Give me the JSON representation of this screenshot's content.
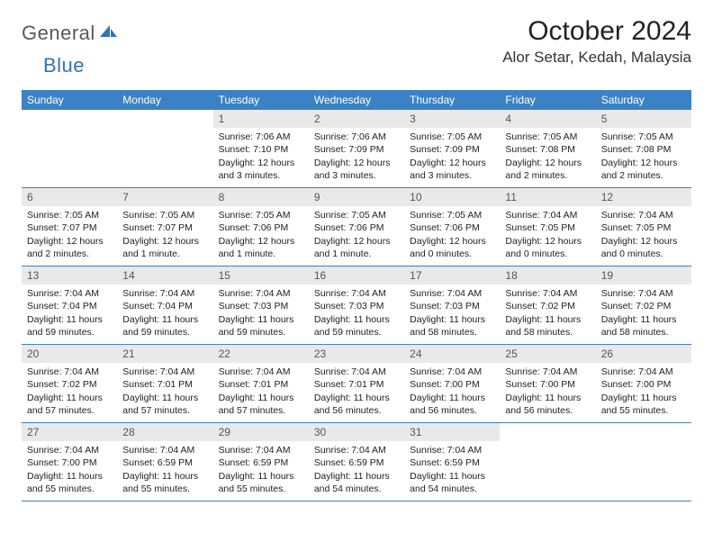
{
  "logo": {
    "part1": "General",
    "part2": "Blue"
  },
  "title": "October 2024",
  "location": "Alor Setar, Kedah, Malaysia",
  "colors": {
    "header_bg": "#3b82c4",
    "header_text": "#ffffff",
    "daynum_bg": "#e9e9e9",
    "border": "#3b82c4",
    "logo_gray": "#555a5e",
    "logo_blue": "#2f75b5"
  },
  "weekdays": [
    "Sunday",
    "Monday",
    "Tuesday",
    "Wednesday",
    "Thursday",
    "Friday",
    "Saturday"
  ],
  "first_weekday_index": 2,
  "days": [
    {
      "n": 1,
      "sunrise": "7:06 AM",
      "sunset": "7:10 PM",
      "daylight": "12 hours and 3 minutes."
    },
    {
      "n": 2,
      "sunrise": "7:06 AM",
      "sunset": "7:09 PM",
      "daylight": "12 hours and 3 minutes."
    },
    {
      "n": 3,
      "sunrise": "7:05 AM",
      "sunset": "7:09 PM",
      "daylight": "12 hours and 3 minutes."
    },
    {
      "n": 4,
      "sunrise": "7:05 AM",
      "sunset": "7:08 PM",
      "daylight": "12 hours and 2 minutes."
    },
    {
      "n": 5,
      "sunrise": "7:05 AM",
      "sunset": "7:08 PM",
      "daylight": "12 hours and 2 minutes."
    },
    {
      "n": 6,
      "sunrise": "7:05 AM",
      "sunset": "7:07 PM",
      "daylight": "12 hours and 2 minutes."
    },
    {
      "n": 7,
      "sunrise": "7:05 AM",
      "sunset": "7:07 PM",
      "daylight": "12 hours and 1 minute."
    },
    {
      "n": 8,
      "sunrise": "7:05 AM",
      "sunset": "7:06 PM",
      "daylight": "12 hours and 1 minute."
    },
    {
      "n": 9,
      "sunrise": "7:05 AM",
      "sunset": "7:06 PM",
      "daylight": "12 hours and 1 minute."
    },
    {
      "n": 10,
      "sunrise": "7:05 AM",
      "sunset": "7:06 PM",
      "daylight": "12 hours and 0 minutes."
    },
    {
      "n": 11,
      "sunrise": "7:04 AM",
      "sunset": "7:05 PM",
      "daylight": "12 hours and 0 minutes."
    },
    {
      "n": 12,
      "sunrise": "7:04 AM",
      "sunset": "7:05 PM",
      "daylight": "12 hours and 0 minutes."
    },
    {
      "n": 13,
      "sunrise": "7:04 AM",
      "sunset": "7:04 PM",
      "daylight": "11 hours and 59 minutes."
    },
    {
      "n": 14,
      "sunrise": "7:04 AM",
      "sunset": "7:04 PM",
      "daylight": "11 hours and 59 minutes."
    },
    {
      "n": 15,
      "sunrise": "7:04 AM",
      "sunset": "7:03 PM",
      "daylight": "11 hours and 59 minutes."
    },
    {
      "n": 16,
      "sunrise": "7:04 AM",
      "sunset": "7:03 PM",
      "daylight": "11 hours and 59 minutes."
    },
    {
      "n": 17,
      "sunrise": "7:04 AM",
      "sunset": "7:03 PM",
      "daylight": "11 hours and 58 minutes."
    },
    {
      "n": 18,
      "sunrise": "7:04 AM",
      "sunset": "7:02 PM",
      "daylight": "11 hours and 58 minutes."
    },
    {
      "n": 19,
      "sunrise": "7:04 AM",
      "sunset": "7:02 PM",
      "daylight": "11 hours and 58 minutes."
    },
    {
      "n": 20,
      "sunrise": "7:04 AM",
      "sunset": "7:02 PM",
      "daylight": "11 hours and 57 minutes."
    },
    {
      "n": 21,
      "sunrise": "7:04 AM",
      "sunset": "7:01 PM",
      "daylight": "11 hours and 57 minutes."
    },
    {
      "n": 22,
      "sunrise": "7:04 AM",
      "sunset": "7:01 PM",
      "daylight": "11 hours and 57 minutes."
    },
    {
      "n": 23,
      "sunrise": "7:04 AM",
      "sunset": "7:01 PM",
      "daylight": "11 hours and 56 minutes."
    },
    {
      "n": 24,
      "sunrise": "7:04 AM",
      "sunset": "7:00 PM",
      "daylight": "11 hours and 56 minutes."
    },
    {
      "n": 25,
      "sunrise": "7:04 AM",
      "sunset": "7:00 PM",
      "daylight": "11 hours and 56 minutes."
    },
    {
      "n": 26,
      "sunrise": "7:04 AM",
      "sunset": "7:00 PM",
      "daylight": "11 hours and 55 minutes."
    },
    {
      "n": 27,
      "sunrise": "7:04 AM",
      "sunset": "7:00 PM",
      "daylight": "11 hours and 55 minutes."
    },
    {
      "n": 28,
      "sunrise": "7:04 AM",
      "sunset": "6:59 PM",
      "daylight": "11 hours and 55 minutes."
    },
    {
      "n": 29,
      "sunrise": "7:04 AM",
      "sunset": "6:59 PM",
      "daylight": "11 hours and 55 minutes."
    },
    {
      "n": 30,
      "sunrise": "7:04 AM",
      "sunset": "6:59 PM",
      "daylight": "11 hours and 54 minutes."
    },
    {
      "n": 31,
      "sunrise": "7:04 AM",
      "sunset": "6:59 PM",
      "daylight": "11 hours and 54 minutes."
    }
  ],
  "labels": {
    "sunrise": "Sunrise:",
    "sunset": "Sunset:",
    "daylight": "Daylight:"
  }
}
